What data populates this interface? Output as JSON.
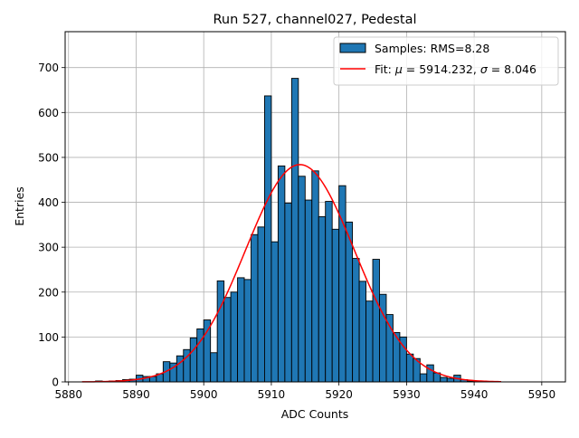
{
  "chart_data": {
    "type": "bar",
    "title": "Run 527, channel027, Pedestal",
    "xlabel": "ADC Counts",
    "ylabel": "Entries",
    "xlim": [
      5879.5,
      5953.5
    ],
    "ylim": [
      0,
      780
    ],
    "xticks": [
      5880,
      5890,
      5900,
      5910,
      5920,
      5930,
      5940,
      5950
    ],
    "yticks": [
      0,
      100,
      200,
      300,
      400,
      500,
      600,
      700
    ],
    "grid": true,
    "legend": "top-right",
    "bin_width": 1,
    "histogram": {
      "name": "Samples: RMS=8.28",
      "color": "#1f77b4",
      "edge_color": "#000000",
      "bin_left_edges": [
        5884,
        5885,
        5886,
        5887,
        5888,
        5889,
        5890,
        5891,
        5892,
        5893,
        5894,
        5895,
        5896,
        5897,
        5898,
        5899,
        5900,
        5901,
        5902,
        5903,
        5904,
        5905,
        5906,
        5907,
        5908,
        5909,
        5910,
        5911,
        5912,
        5913,
        5914,
        5915,
        5916,
        5917,
        5918,
        5919,
        5920,
        5921,
        5922,
        5923,
        5924,
        5925,
        5926,
        5927,
        5928,
        5929,
        5930,
        5931,
        5932,
        5933,
        5934,
        5935,
        5936,
        5937,
        5938,
        5939,
        5940
      ],
      "counts": [
        2,
        1,
        2,
        3,
        5,
        6,
        15,
        12,
        12,
        18,
        45,
        42,
        58,
        72,
        98,
        118,
        138,
        65,
        225,
        188,
        200,
        232,
        228,
        328,
        345,
        637,
        312,
        481,
        398,
        676,
        458,
        405,
        470,
        368,
        402,
        340,
        437,
        356,
        275,
        224,
        180,
        273,
        195,
        150,
        110,
        100,
        62,
        52,
        18,
        38,
        20,
        10,
        8,
        15,
        5,
        2,
        1
      ]
    },
    "fit": {
      "name": "Fit: μ = 5914.232, σ = 8.046",
      "label_prefix": "Fit: ",
      "mu_symbol": "μ",
      "mu_text": " = 5914.232, ",
      "sigma_symbol": "σ",
      "sigma_text": " = 8.046",
      "color": "#ff0000",
      "mu": 5914.232,
      "sigma": 8.046,
      "amplitude": 484,
      "x_range": [
        5882,
        5944
      ]
    }
  }
}
